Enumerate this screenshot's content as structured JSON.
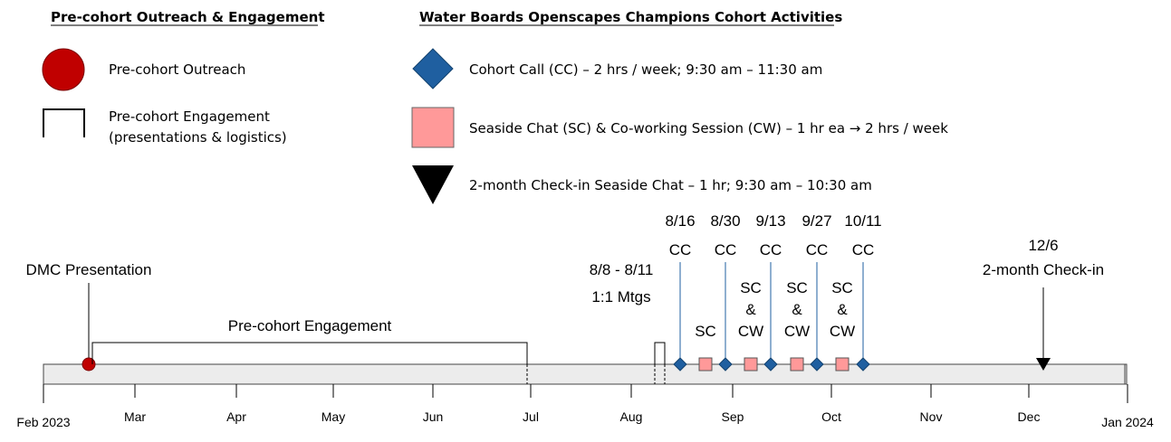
{
  "legend": {
    "left_title": "Pre-cohort Outreach & Engagement",
    "right_title": "Water Boards Openscapes Champions Cohort Activities",
    "outreach_label": "Pre-cohort Outreach",
    "engagement_label_line1": "Pre-cohort Engagement",
    "engagement_label_line2": "(presentations & logistics)",
    "cohort_call_label": "Cohort Call (CC) – 2 hrs / week; 9:30 am – 11:30 am",
    "seaside_label": "Seaside Chat (SC) & Co-working Session (CW) – 1 hr ea →  2 hrs / week",
    "checkin_label": "2-month Check-in Seaside Chat – 1 hr; 9:30 am – 10:30 am"
  },
  "colors": {
    "outreach": "#c00000",
    "cohort_call": "#1f5fa0",
    "seaside": "#ff9999",
    "bar_fill": "#ececec",
    "checkin": "#000000"
  },
  "timeline": {
    "start_label": "Feb 2023",
    "end_label": "Jan 2024",
    "months": [
      "Mar",
      "Apr",
      "May",
      "Jun",
      "Jul",
      "Aug",
      "Sep",
      "Oct",
      "Nov",
      "Dec"
    ],
    "dmc_label": "DMC Presentation",
    "engagement_label": "Pre-cohort Engagement",
    "mtgs_dates": "8/8 - 8/11",
    "mtgs_label": "1:1 Mtgs",
    "cohort_calls": [
      {
        "date": "8/16",
        "label": "CC"
      },
      {
        "date": "8/30",
        "label": "CC"
      },
      {
        "date": "9/13",
        "label": "CC"
      },
      {
        "date": "9/27",
        "label": "CC"
      },
      {
        "date": "10/11",
        "label": "CC"
      }
    ],
    "seaside": [
      {
        "line1": "SC",
        "line2": "",
        "line3": ""
      },
      {
        "line1": "SC",
        "line2": "&",
        "line3": "CW"
      },
      {
        "line1": "SC",
        "line2": "&",
        "line3": "CW"
      },
      {
        "line1": "SC",
        "line2": "&",
        "line3": "CW"
      }
    ],
    "checkin_date": "12/6",
    "checkin_label": "2-month Check-in"
  }
}
